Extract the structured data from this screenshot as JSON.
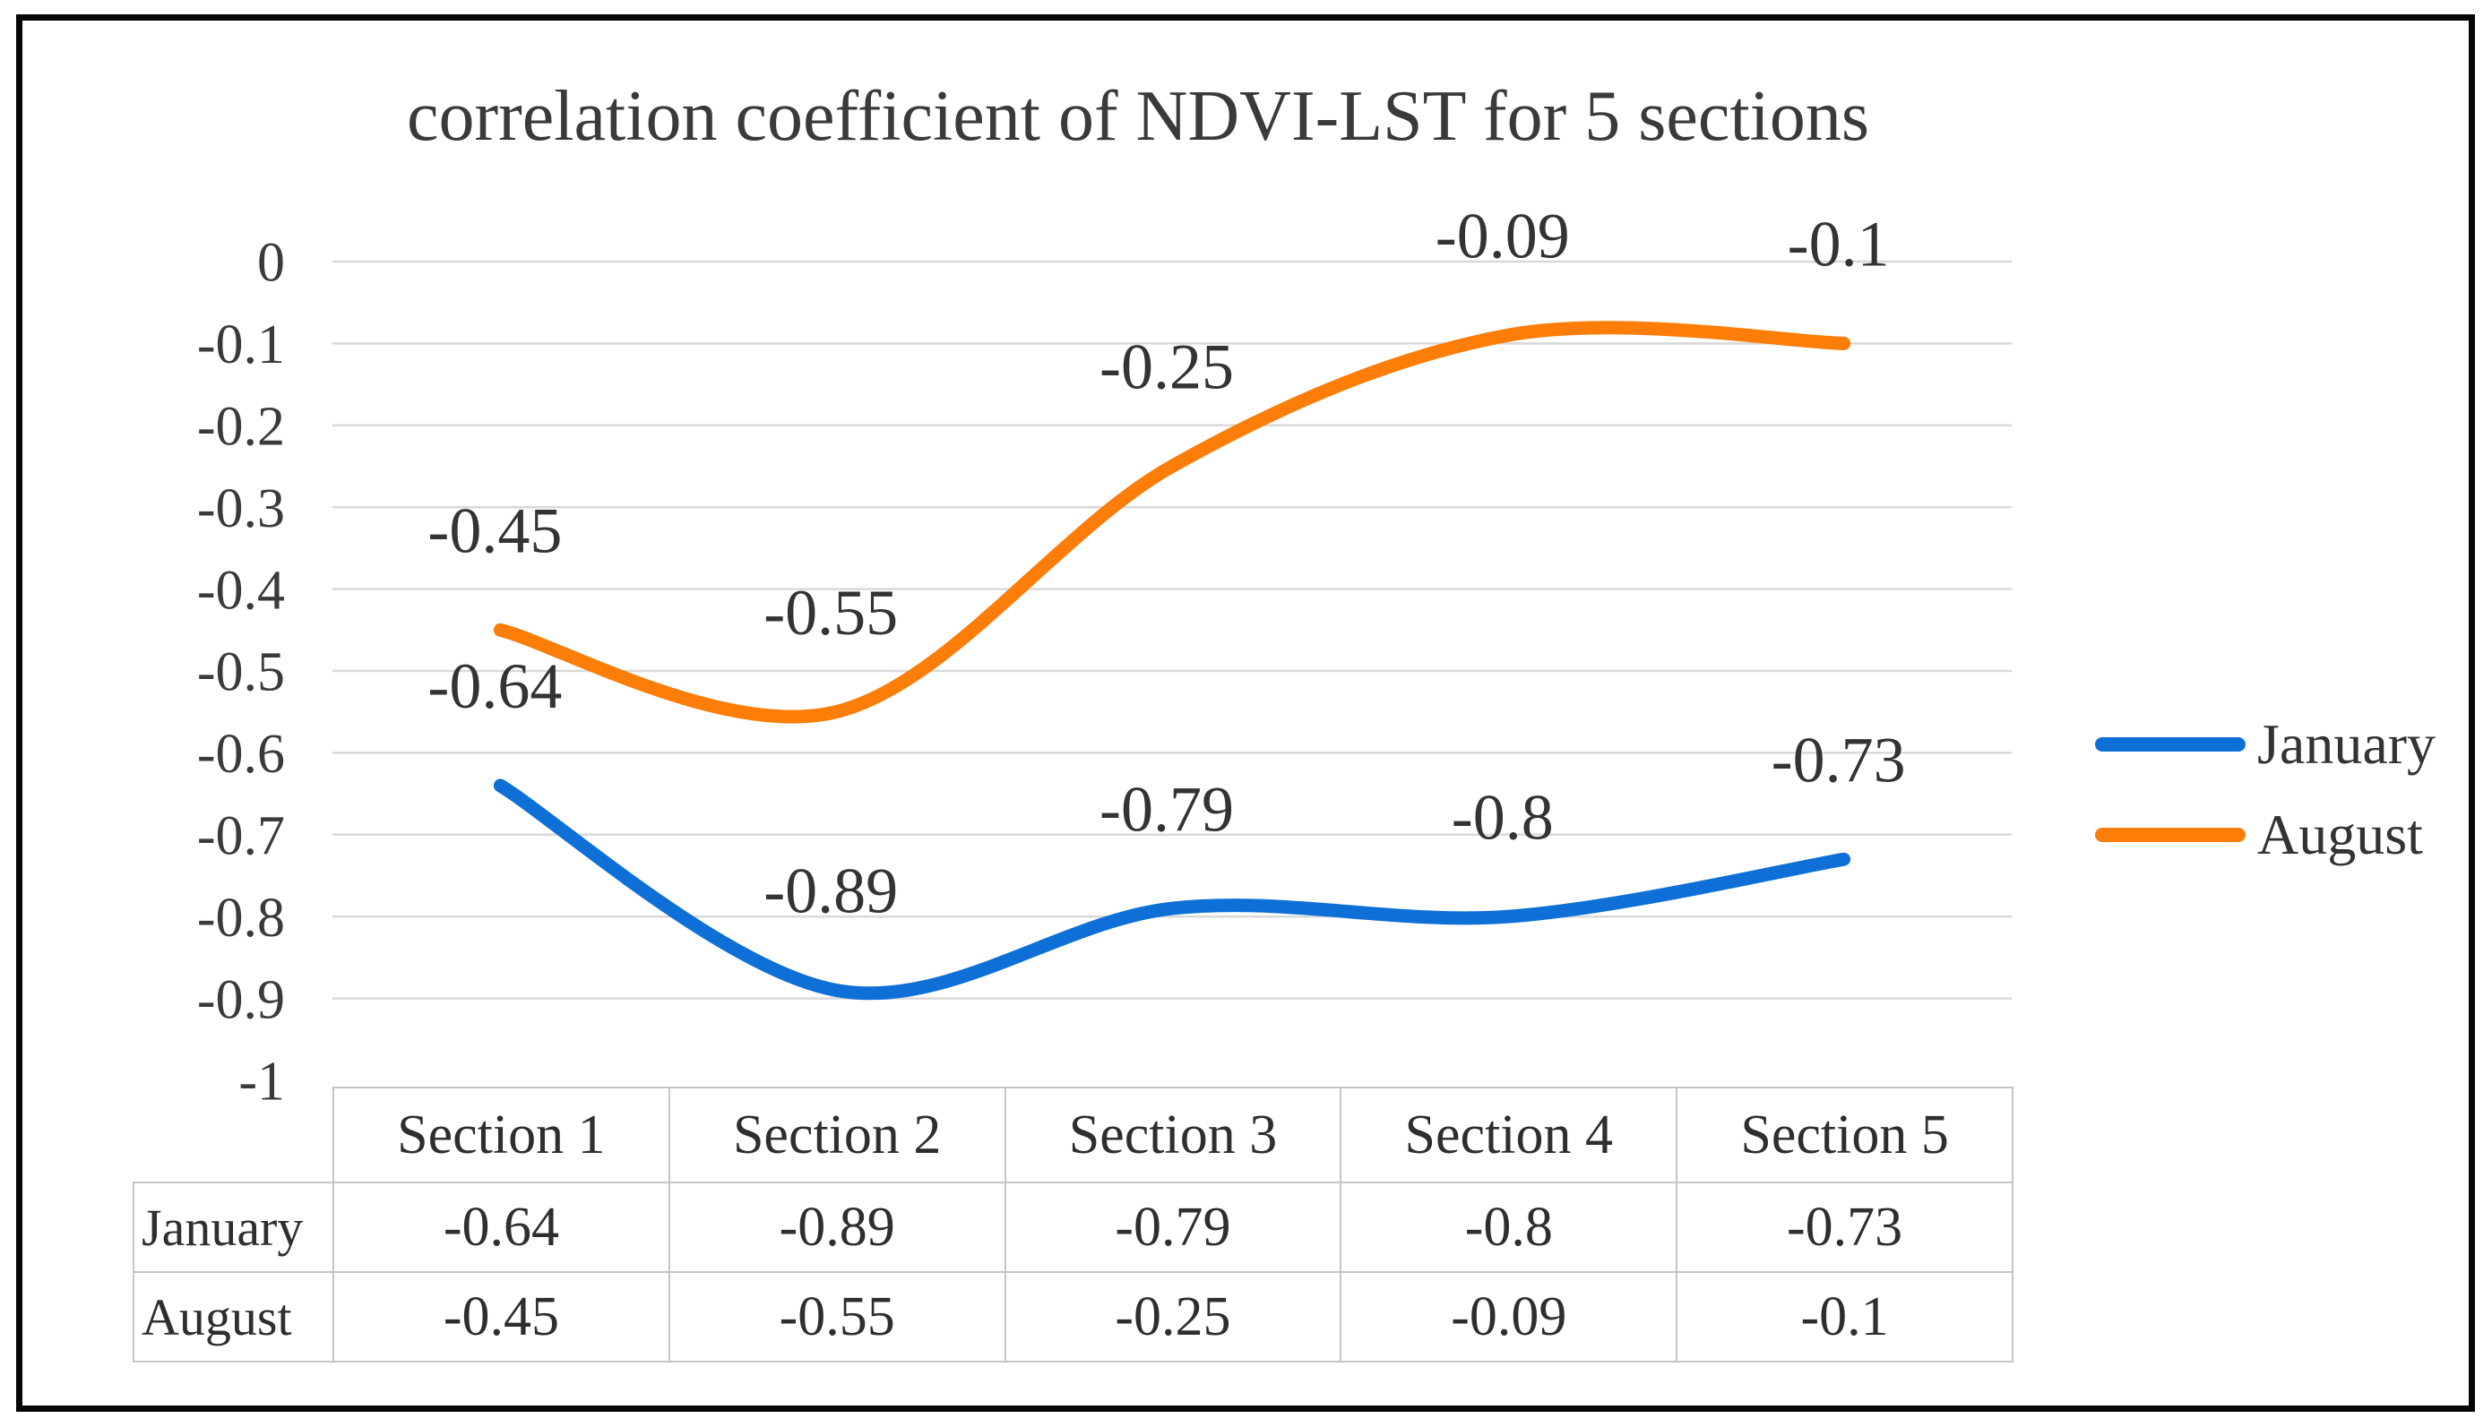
{
  "chart_data": {
    "type": "line",
    "title": "correlation coefficient of NDVI-LST for 5 sections",
    "categories": [
      "Section 1",
      "Section 2",
      "Section 3",
      "Section 4",
      "Section 5"
    ],
    "series": [
      {
        "name": "January",
        "values": [
          -0.64,
          -0.89,
          -0.79,
          -0.8,
          -0.73
        ],
        "labels": [
          "-0.64",
          "-0.89",
          "-0.79",
          "-0.8",
          "-0.73"
        ],
        "color": "#0e70d6"
      },
      {
        "name": "August",
        "values": [
          -0.45,
          -0.55,
          -0.25,
          -0.09,
          -0.1
        ],
        "labels": [
          "-0.45",
          "-0.55",
          "-0.25",
          "-0.09",
          "-0.1"
        ],
        "color": "#fc7d08"
      }
    ],
    "xlabel": "",
    "ylabel": "",
    "ylim": [
      -1,
      0
    ],
    "y_tick_step": 0.1,
    "y_tick_labels": [
      "0",
      "-0.1",
      "-0.2",
      "-0.3",
      "-0.4",
      "-0.5",
      "-0.6",
      "-0.7",
      "-0.8",
      "-0.9",
      "-1"
    ],
    "grid": "horizontal",
    "smooth_lines": true,
    "legend_position": "right",
    "colors": {
      "gridline": "#d9d9d9",
      "axis_text": "#3a3a3a",
      "label_text": "#333333"
    }
  },
  "table": {
    "corner_label": "",
    "columns": [
      "Section 1",
      "Section 2",
      "Section 3",
      "Section 4",
      "Section 5"
    ],
    "rows": [
      {
        "label": "January",
        "values": [
          "-0.64",
          "-0.89",
          "-0.79",
          "-0.8",
          "-0.73"
        ]
      },
      {
        "label": "August",
        "values": [
          "-0.45",
          "-0.55",
          "-0.25",
          "-0.09",
          "-0.1"
        ]
      }
    ]
  }
}
